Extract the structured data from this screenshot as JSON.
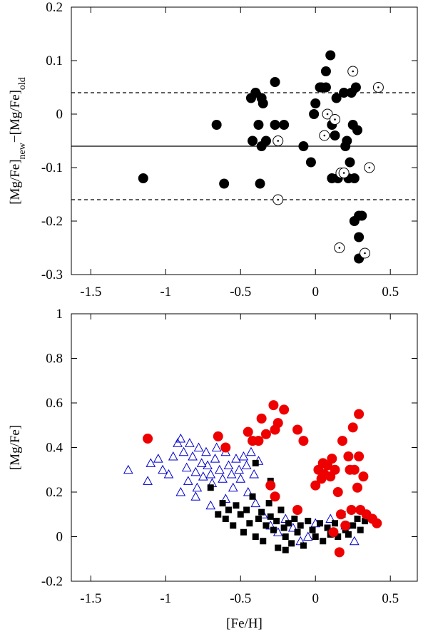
{
  "chart_data": [
    {
      "type": "scatter",
      "ylabel": [
        {
          "text": "[Mg/Fe]",
          "sub": false
        },
        {
          "text": "new",
          "sub": true
        },
        {
          "text": "−[Mg/Fe]",
          "sub": false
        },
        {
          "text": "old",
          "sub": true
        }
      ],
      "xlim": [
        -1.63,
        0.68
      ],
      "xticks": [
        -1.5,
        -1,
        -0.5,
        0,
        0.5
      ],
      "ylim": [
        -0.3,
        0.2
      ],
      "yticks": [
        -0.3,
        -0.2,
        -0.1,
        0,
        0.1,
        0.2
      ],
      "hlines": [
        {
          "value": -0.06,
          "style": "solid"
        },
        {
          "value": 0.04,
          "style": "dashed"
        },
        {
          "value": -0.16,
          "style": "dashed"
        }
      ],
      "series": [
        {
          "marker": "circle",
          "color": "#000000",
          "x": [
            -1.15,
            -0.66,
            -0.61,
            -0.43,
            -0.42,
            -0.4,
            -0.38,
            -0.37,
            -0.36,
            -0.35,
            -0.36,
            -0.33,
            -0.27,
            -0.21,
            -0.27,
            -0.08,
            -0.03,
            0.0,
            -0.01,
            0.04,
            0.07,
            0.07,
            0.1,
            0.11,
            0.13,
            0.14,
            0.15,
            0.19,
            0.2,
            0.21,
            0.22,
            0.23,
            0.24,
            0.25,
            0.26,
            0.27,
            0.26,
            0.29,
            0.31,
            0.29,
            0.29,
            0.28,
            0.11,
            0.03
          ],
          "values": [
            -0.12,
            -0.02,
            -0.13,
            0.03,
            -0.05,
            0.04,
            -0.02,
            -0.13,
            0.03,
            0.02,
            -0.06,
            -0.05,
            -0.02,
            -0.02,
            0.06,
            -0.06,
            -0.09,
            0.02,
            0.0,
            0.05,
            0.08,
            0.05,
            0.11,
            -0.02,
            -0.04,
            0.03,
            -0.12,
            0.04,
            -0.06,
            -0.05,
            -0.12,
            -0.09,
            0.04,
            -0.02,
            -0.12,
            0.05,
            -0.2,
            -0.19,
            -0.19,
            -0.23,
            -0.27,
            -0.03,
            -0.12,
            0.05
          ]
        },
        {
          "marker": "open-circle",
          "color": "#000000",
          "x": [
            -0.25,
            -0.25,
            0.06,
            0.08,
            0.13,
            0.17,
            0.19,
            0.16,
            0.25,
            0.33,
            0.36,
            0.42
          ],
          "values": [
            -0.05,
            -0.16,
            -0.04,
            0.0,
            -0.01,
            -0.11,
            -0.11,
            -0.25,
            0.08,
            -0.26,
            -0.1,
            0.05
          ]
        }
      ]
    },
    {
      "type": "scatter",
      "xlabel": "[Fe/H]",
      "ylabel": "[Mg/Fe]",
      "xlim": [
        -1.63,
        0.68
      ],
      "xticks": [
        -1.5,
        -1,
        -0.5,
        0,
        0.5
      ],
      "ylim": [
        -0.2,
        1
      ],
      "yticks": [
        -0.2,
        0,
        0.2,
        0.4,
        0.6,
        0.8,
        1
      ],
      "series": [
        {
          "marker": "triangle-open",
          "color": "#0000cc",
          "x": [
            -1.25,
            -1.12,
            -1.1,
            -1.05,
            -1.02,
            -0.98,
            -0.95,
            -0.92,
            -0.9,
            -0.88,
            -0.86,
            -0.85,
            -0.84,
            -0.82,
            -0.8,
            -0.79,
            -0.78,
            -0.76,
            -0.75,
            -0.73,
            -0.72,
            -0.7,
            -0.69,
            -0.67,
            -0.66,
            -0.64,
            -0.62,
            -0.6,
            -0.58,
            -0.56,
            -0.55,
            -0.53,
            -0.51,
            -0.5,
            -0.48,
            -0.46,
            -0.45,
            -0.43,
            -0.41,
            -0.4,
            -0.38,
            -0.35,
            -0.3,
            -0.25,
            -0.2,
            -0.15,
            -0.1,
            -0.05,
            0.0,
            0.1,
            0.2,
            0.26,
            -0.9,
            -0.8,
            -0.7,
            -0.6
          ],
          "values": [
            0.3,
            0.25,
            0.33,
            0.35,
            0.3,
            0.28,
            0.36,
            0.42,
            0.44,
            0.38,
            0.31,
            0.25,
            0.42,
            0.36,
            0.29,
            0.22,
            0.4,
            0.33,
            0.27,
            0.38,
            0.32,
            0.28,
            0.24,
            0.35,
            0.4,
            0.3,
            0.26,
            0.38,
            0.32,
            0.28,
            0.22,
            0.35,
            0.3,
            0.26,
            0.36,
            0.32,
            0.2,
            0.38,
            0.28,
            0.15,
            0.34,
            0.1,
            0.05,
            0.02,
            0.08,
            0.04,
            -0.02,
            0.0,
            0.06,
            0.08,
            0.05,
            -0.02,
            0.2,
            0.18,
            0.14,
            0.17
          ]
        },
        {
          "marker": "square",
          "color": "#000000",
          "x": [
            -0.7,
            -0.65,
            -0.62,
            -0.6,
            -0.58,
            -0.55,
            -0.53,
            -0.5,
            -0.48,
            -0.46,
            -0.44,
            -0.42,
            -0.4,
            -0.38,
            -0.36,
            -0.35,
            -0.33,
            -0.31,
            -0.3,
            -0.28,
            -0.26,
            -0.25,
            -0.23,
            -0.21,
            -0.2,
            -0.18,
            -0.16,
            -0.14,
            -0.12,
            -0.1,
            -0.08,
            -0.05,
            -0.02,
            0.0,
            0.03,
            0.05,
            0.08,
            0.1,
            0.13,
            0.15,
            0.18,
            0.2,
            0.22,
            0.25,
            0.28,
            0.3,
            0.33,
            -0.4,
            -0.3,
            -0.2
          ],
          "values": [
            0.22,
            0.1,
            0.15,
            0.08,
            0.12,
            0.05,
            0.14,
            0.1,
            0.02,
            0.12,
            0.06,
            0.18,
            0.0,
            0.08,
            0.11,
            -0.02,
            0.05,
            0.15,
            0.09,
            0.03,
            0.07,
            -0.05,
            0.12,
            0.04,
            0.0,
            0.06,
            -0.03,
            0.08,
            0.02,
            0.05,
            -0.04,
            0.07,
            0.03,
            0.0,
            0.06,
            -0.02,
            0.04,
            0.01,
            0.06,
            0.0,
            0.1,
            0.03,
            0.01,
            0.05,
            0.08,
            0.03,
            0.07,
            0.33,
            0.25,
            -0.06
          ]
        },
        {
          "marker": "circle",
          "color": "#ee0000",
          "x": [
            -1.12,
            -0.65,
            -0.6,
            -0.45,
            -0.42,
            -0.38,
            -0.36,
            -0.33,
            -0.28,
            -0.27,
            -0.25,
            -0.21,
            -0.12,
            -0.08,
            -0.3,
            -0.27,
            0.0,
            0.02,
            0.04,
            0.05,
            0.06,
            0.08,
            0.1,
            0.11,
            0.13,
            0.15,
            0.17,
            0.18,
            0.2,
            0.22,
            0.23,
            0.25,
            0.26,
            0.28,
            0.29,
            0.29,
            0.3,
            0.32,
            0.34,
            0.38,
            0.41,
            0.16,
            0.24,
            0.12,
            -0.12
          ],
          "values": [
            0.44,
            0.45,
            0.4,
            0.47,
            0.43,
            0.43,
            0.53,
            0.46,
            0.59,
            0.48,
            0.51,
            0.57,
            0.48,
            0.43,
            0.23,
            0.18,
            0.23,
            0.3,
            0.26,
            0.33,
            0.28,
            0.32,
            0.27,
            0.35,
            0.3,
            0.2,
            0.1,
            0.43,
            0.05,
            0.36,
            0.3,
            0.49,
            0.3,
            0.22,
            0.55,
            0.36,
            0.12,
            0.27,
            0.1,
            0.08,
            0.06,
            -0.07,
            0.12,
            0.02,
            0.12
          ]
        }
      ]
    }
  ]
}
